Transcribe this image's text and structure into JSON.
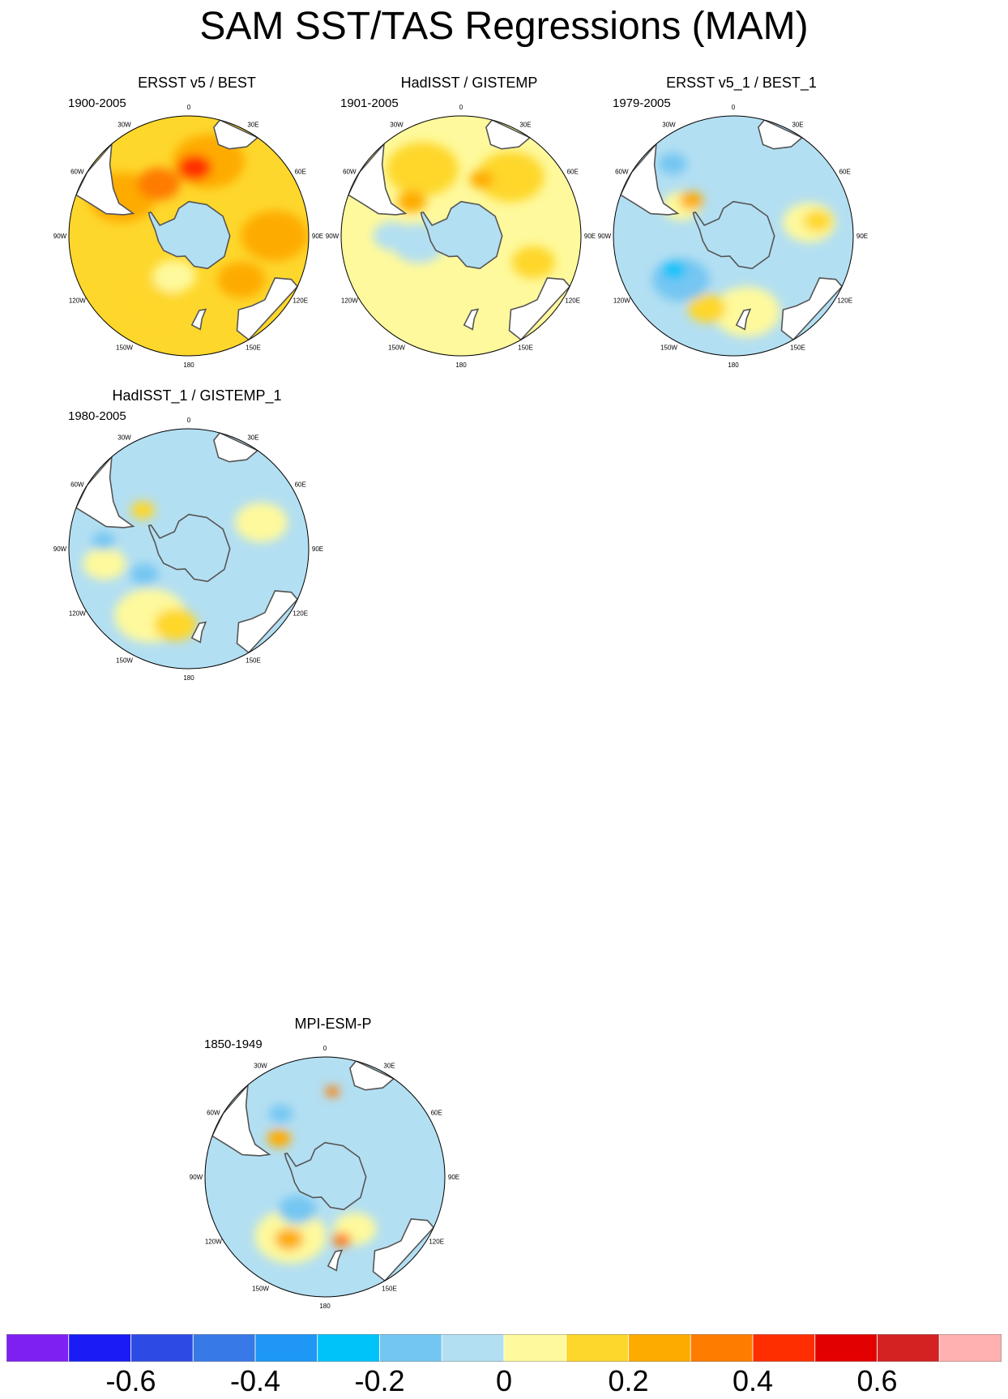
{
  "title": "SAM SST/TAS Regressions (MAM)",
  "colors": {
    "land": "#ffffff",
    "coast": "#555555",
    "antarctica": "#b3dff2",
    "palette": [
      "#7f20f2",
      "#1b1bf5",
      "#2e4ae4",
      "#377ae7",
      "#1e97f5",
      "#00c3fa",
      "#74c6f2",
      "#b3dff2",
      "#fef99c",
      "#fed72c",
      "#feab00",
      "#fe7c00",
      "#ff2e00",
      "#e30000",
      "#d42121",
      "#ffb0b0"
    ]
  },
  "chart_data": [
    {
      "type": "heatmap",
      "projection": "south-polar-stereographic",
      "title": "ERSST v5 / BEST",
      "period": "1900-2005",
      "background_level": 9,
      "blobs": [
        {
          "lon": -60,
          "lat": -45,
          "r": 0.28,
          "level": 10
        },
        {
          "lon": 15,
          "lat": -45,
          "r": 0.3,
          "level": 10
        },
        {
          "lon": 90,
          "lat": -40,
          "r": 0.28,
          "level": 10
        },
        {
          "lon": 130,
          "lat": -50,
          "r": 0.2,
          "level": 10
        },
        {
          "lon": -150,
          "lat": -45,
          "r": 0.25,
          "level": 9
        },
        {
          "lon": -30,
          "lat": -55,
          "r": 0.18,
          "level": 11
        },
        {
          "lon": 5,
          "lat": -50,
          "r": 0.14,
          "level": 12
        },
        {
          "lon": -160,
          "lat": -65,
          "r": 0.18,
          "level": 8
        }
      ]
    },
    {
      "type": "heatmap",
      "projection": "south-polar-stereographic",
      "title": "HadISST / GISTEMP",
      "period": "1901-2005",
      "background_level": 8,
      "blobs": [
        {
          "lon": -30,
          "lat": -45,
          "r": 0.3,
          "level": 9
        },
        {
          "lon": 40,
          "lat": -45,
          "r": 0.28,
          "level": 9
        },
        {
          "lon": 110,
          "lat": -45,
          "r": 0.18,
          "level": 9
        },
        {
          "lon": -55,
          "lat": -55,
          "r": 0.12,
          "level": 10
        },
        {
          "lon": 20,
          "lat": -55,
          "r": 0.1,
          "level": 10
        },
        {
          "lon": -90,
          "lat": -50,
          "r": 0.16,
          "level": 7
        },
        {
          "lon": -100,
          "lat": -65,
          "r": 0.22,
          "level": 7
        }
      ]
    },
    {
      "type": "heatmap",
      "projection": "south-polar-stereographic",
      "title": "ERSST v5_1 / BEST_1",
      "period": "1979-2005",
      "background_level": 7,
      "blobs": [
        {
          "lon": 80,
          "lat": -45,
          "r": 0.22,
          "level": 8
        },
        {
          "lon": 170,
          "lat": -45,
          "r": 0.28,
          "level": 8
        },
        {
          "lon": -60,
          "lat": -55,
          "r": 0.16,
          "level": 8
        },
        {
          "lon": 80,
          "lat": -40,
          "r": 0.12,
          "level": 9
        },
        {
          "lon": -160,
          "lat": -45,
          "r": 0.16,
          "level": 9
        },
        {
          "lon": -50,
          "lat": -58,
          "r": 0.1,
          "level": 10
        },
        {
          "lon": -40,
          "lat": -35,
          "r": 0.12,
          "level": 6
        },
        {
          "lon": -130,
          "lat": -50,
          "r": 0.24,
          "level": 6
        },
        {
          "lon": -120,
          "lat": -50,
          "r": 0.1,
          "level": 5
        }
      ]
    },
    {
      "type": "heatmap",
      "projection": "south-polar-stereographic",
      "title": "HadISST_1 / GISTEMP_1",
      "period": "1980-2005",
      "background_level": 7,
      "blobs": [
        {
          "lon": -150,
          "lat": -45,
          "r": 0.3,
          "level": 8
        },
        {
          "lon": 70,
          "lat": -45,
          "r": 0.22,
          "level": 8
        },
        {
          "lon": -100,
          "lat": -40,
          "r": 0.18,
          "level": 8
        },
        {
          "lon": -170,
          "lat": -45,
          "r": 0.18,
          "level": 9
        },
        {
          "lon": -50,
          "lat": -55,
          "r": 0.1,
          "level": 9
        },
        {
          "lon": -120,
          "lat": -60,
          "r": 0.12,
          "level": 6
        },
        {
          "lon": -85,
          "lat": -40,
          "r": 0.1,
          "level": 6
        }
      ]
    },
    {
      "type": "heatmap",
      "projection": "south-polar-stereographic",
      "title": "MPI-ESM-P",
      "period": "1850-1949",
      "background_level": 7,
      "blobs": [
        {
          "lon": -150,
          "lat": -50,
          "r": 0.3,
          "level": 8
        },
        {
          "lon": 150,
          "lat": -55,
          "r": 0.18,
          "level": 8
        },
        {
          "lon": -150,
          "lat": -48,
          "r": 0.12,
          "level": 10
        },
        {
          "lon": 165,
          "lat": -52,
          "r": 0.08,
          "level": 11
        },
        {
          "lon": -50,
          "lat": -55,
          "r": 0.1,
          "level": 10
        },
        {
          "lon": 5,
          "lat": -40,
          "r": 0.06,
          "level": 11
        },
        {
          "lon": -140,
          "lat": -65,
          "r": 0.16,
          "level": 6
        },
        {
          "lon": -35,
          "lat": -45,
          "r": 0.1,
          "level": 6
        }
      ]
    }
  ],
  "lon_labels": [
    "0",
    "30E",
    "60E",
    "90E",
    "120E",
    "150E",
    "180",
    "150W",
    "120W",
    "90W",
    "60W",
    "30W"
  ],
  "colorbar": {
    "levels": [
      -0.7,
      -0.6,
      -0.5,
      -0.4,
      -0.3,
      -0.2,
      -0.1,
      0,
      0.1,
      0.2,
      0.3,
      0.4,
      0.5,
      0.6,
      0.7
    ],
    "labels": [
      "-0.6",
      "-0.4",
      "-0.2",
      "0",
      "0.2",
      "0.4",
      "0.6"
    ]
  }
}
